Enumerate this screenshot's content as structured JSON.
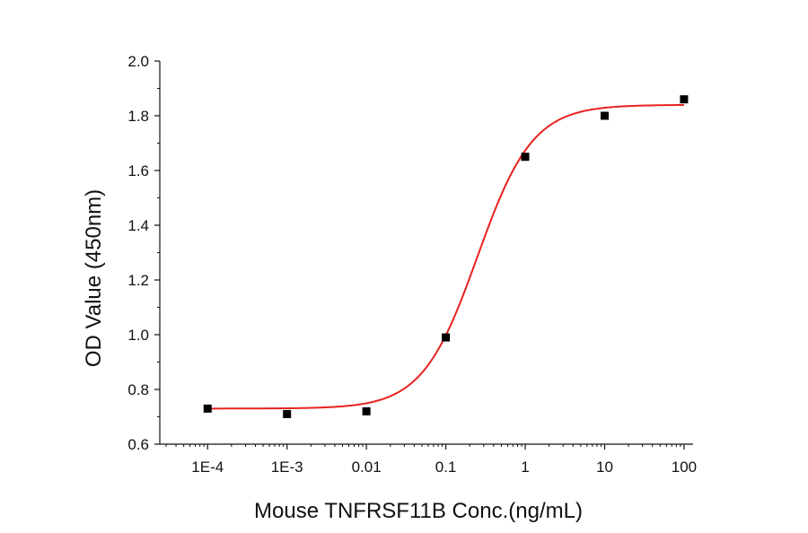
{
  "chart_data": {
    "type": "scatter",
    "xlabel": "Mouse TNFRSF11B Conc.(ng/mL)",
    "ylabel": "OD Value (450nm)",
    "x_scale": "log",
    "xlim": [
      2.5e-05,
      130
    ],
    "ylim": [
      0.6,
      2.0
    ],
    "x_ticks": [
      {
        "value": 0.0001,
        "label": "1E-4"
      },
      {
        "value": 0.001,
        "label": "1E-3"
      },
      {
        "value": 0.01,
        "label": "0.01"
      },
      {
        "value": 0.1,
        "label": "0.1"
      },
      {
        "value": 1,
        "label": "1"
      },
      {
        "value": 10,
        "label": "10"
      },
      {
        "value": 100,
        "label": "100"
      }
    ],
    "y_ticks": [
      {
        "value": 0.6,
        "label": "0.6"
      },
      {
        "value": 0.8,
        "label": "0.8"
      },
      {
        "value": 1.0,
        "label": "1.0"
      },
      {
        "value": 1.2,
        "label": "1.2"
      },
      {
        "value": 1.4,
        "label": "1.4"
      },
      {
        "value": 1.6,
        "label": "1.6"
      },
      {
        "value": 1.8,
        "label": "1.8"
      },
      {
        "value": 2.0,
        "label": "2.0"
      }
    ],
    "series": [
      {
        "marker": "square",
        "color": "#000000",
        "x": [
          0.0001,
          0.001,
          0.01,
          0.1,
          1,
          10,
          100
        ],
        "y": [
          0.73,
          0.71,
          0.72,
          0.99,
          1.65,
          1.8,
          1.86
        ]
      }
    ],
    "fit_curve": {
      "model": "4PL",
      "color": "#e8221e",
      "bottom": 0.73,
      "top": 1.84,
      "ec50": 0.25,
      "hill": 1.25
    },
    "grid": false,
    "legend": "none"
  }
}
